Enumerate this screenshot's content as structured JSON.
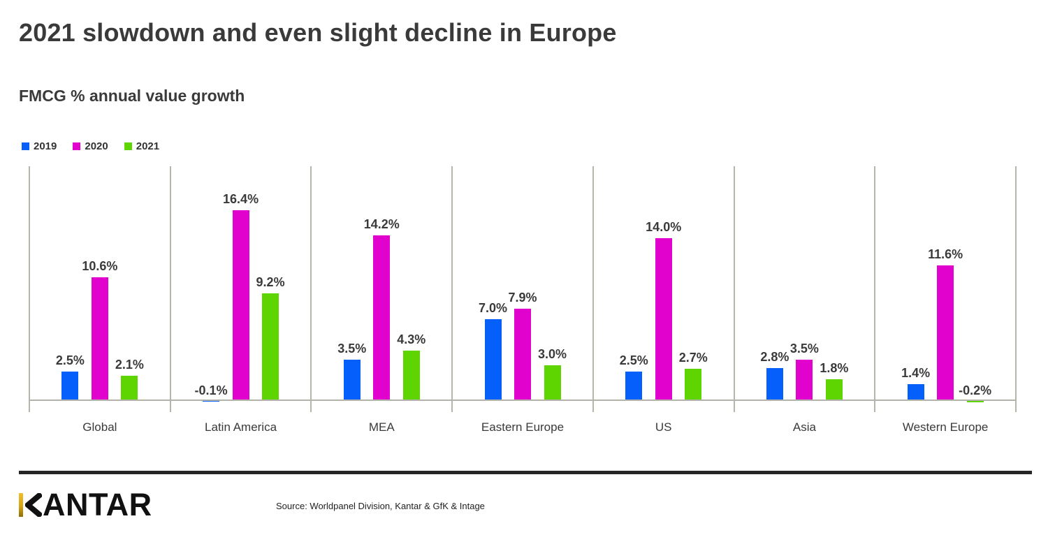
{
  "page": {
    "title": "2021 slowdown and even slight decline in Europe",
    "subtitle": "FMCG % annual value growth"
  },
  "legend": [
    {
      "label": "2019",
      "color": "#055ffa"
    },
    {
      "label": "2020",
      "color": "#e202ce"
    },
    {
      "label": "2021",
      "color": "#5ed400"
    }
  ],
  "chart_data": {
    "type": "bar",
    "title": "FMCG % annual value growth",
    "categories": [
      "Global",
      "Latin America",
      "MEA",
      "Eastern Europe",
      "US",
      "Asia",
      "Western Europe"
    ],
    "series": [
      {
        "name": "2019",
        "color": "#055ffa",
        "values": [
          2.5,
          -0.1,
          3.5,
          7.0,
          2.5,
          2.8,
          1.4
        ],
        "labels": [
          "2.5%",
          "-0.1%",
          "3.5%",
          "7.0%",
          "2.5%",
          "2.8%",
          "1.4%"
        ]
      },
      {
        "name": "2020",
        "color": "#e202ce",
        "values": [
          10.6,
          16.4,
          14.2,
          7.9,
          14.0,
          3.5,
          11.6
        ],
        "labels": [
          "10.6%",
          "16.4%",
          "14.2%",
          "7.9%",
          "14.0%",
          "3.5%",
          "11.6%"
        ]
      },
      {
        "name": "2021",
        "color": "#5ed400",
        "values": [
          2.1,
          9.2,
          4.3,
          3.0,
          2.7,
          1.8,
          -0.2
        ],
        "labels": [
          "2.1%",
          "9.2%",
          "4.3%",
          "3.0%",
          "2.7%",
          "1.8%",
          "-0.2%"
        ]
      }
    ],
    "xlabel": "",
    "ylabel": "",
    "ylim": [
      -0.5,
      20
    ],
    "value_labels_shown": true,
    "grid": "vertical-category-separators",
    "legend_position": "top-left",
    "axis_color": "#b5b5ac"
  },
  "footer": {
    "logo_text_visible_part": "ANTAR",
    "logo_full_text": "KANTAR",
    "logo_accent_color": "#d9a514",
    "source": "Source: Worldpanel Division, Kantar & GfK & Intage"
  },
  "colors": {
    "background": "#ffffff",
    "text_dark": "#3a3a3a",
    "footer_bar": "#262626"
  }
}
